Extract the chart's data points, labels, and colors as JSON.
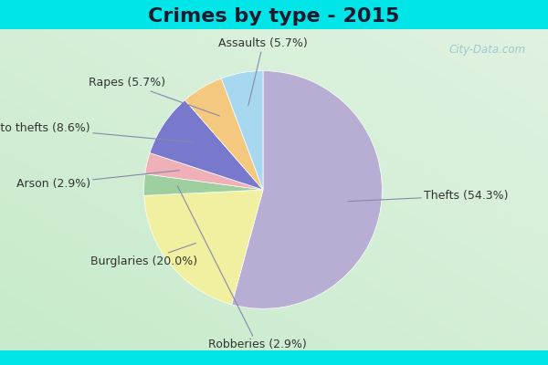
{
  "title": "Crimes by type - 2015",
  "labels": [
    "Thefts",
    "Burglaries",
    "Robberies",
    "Arson",
    "Auto thefts",
    "Rapes",
    "Assaults"
  ],
  "values": [
    54.3,
    20.0,
    2.9,
    2.9,
    8.6,
    5.7,
    5.7
  ],
  "colors": [
    "#b8aed4",
    "#f0f0a0",
    "#9ecf9e",
    "#f0b0b8",
    "#7878cc",
    "#f5c880",
    "#a8d8f0"
  ],
  "background_cyan": "#00e5e8",
  "title_fontsize": 16,
  "label_fontsize": 9,
  "watermark": "City-Data.com"
}
